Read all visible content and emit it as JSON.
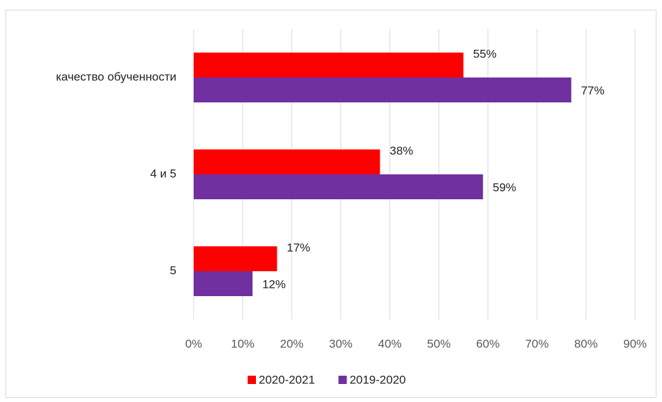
{
  "chart_data": {
    "type": "barh",
    "categories": [
      "качество обученности",
      "4 и 5",
      "5"
    ],
    "series": [
      {
        "name": "2020-2021",
        "color": "#ff0000",
        "values": [
          55,
          38,
          17
        ],
        "value_labels": [
          "55%",
          "38%",
          "17%"
        ]
      },
      {
        "name": "2019-2020",
        "color": "#7030a0",
        "values": [
          77,
          59,
          12
        ],
        "value_labels": [
          "77%",
          "59%",
          "12%"
        ]
      }
    ],
    "xlim": [
      0,
      90
    ],
    "xticks": [
      {
        "value": 0,
        "label": "0%"
      },
      {
        "value": 10,
        "label": "10%"
      },
      {
        "value": 20,
        "label": "20%"
      },
      {
        "value": 30,
        "label": "30%"
      },
      {
        "value": 40,
        "label": "40%"
      },
      {
        "value": 50,
        "label": "50%"
      },
      {
        "value": 60,
        "label": "60%"
      },
      {
        "value": 70,
        "label": "70%"
      },
      {
        "value": 80,
        "label": "80%"
      },
      {
        "value": 90,
        "label": "90%"
      }
    ],
    "grid": true,
    "legend": "bottom"
  }
}
